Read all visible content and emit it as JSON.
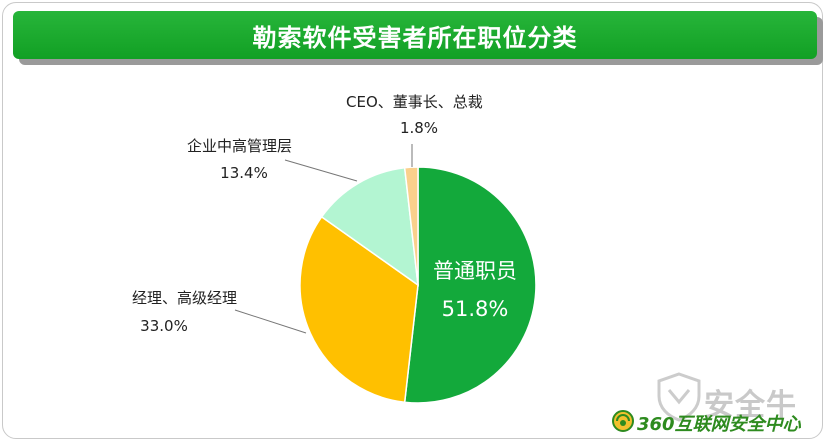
{
  "header": {
    "title": "勒索软件受害者所在职位分类"
  },
  "chart_data": {
    "type": "pie",
    "title": "勒索软件受害者所在职位分类",
    "slices": [
      {
        "label": "普通职员",
        "value": 51.8,
        "value_label": "51.8%",
        "color": "#13a93b"
      },
      {
        "label": "经理、高级经理",
        "value": 33.0,
        "value_label": "33.0%",
        "color": "#ffc000"
      },
      {
        "label": "企业中高管理层",
        "value": 13.4,
        "value_label": "13.4%",
        "color": "#b3f5d2"
      },
      {
        "label": "CEO、董事长、总裁",
        "value": 1.8,
        "value_label": "1.8%",
        "color": "#fad08c"
      }
    ]
  },
  "watermark": {
    "text": "安全牛"
  },
  "logo": {
    "text": "360互联网安全中心"
  }
}
